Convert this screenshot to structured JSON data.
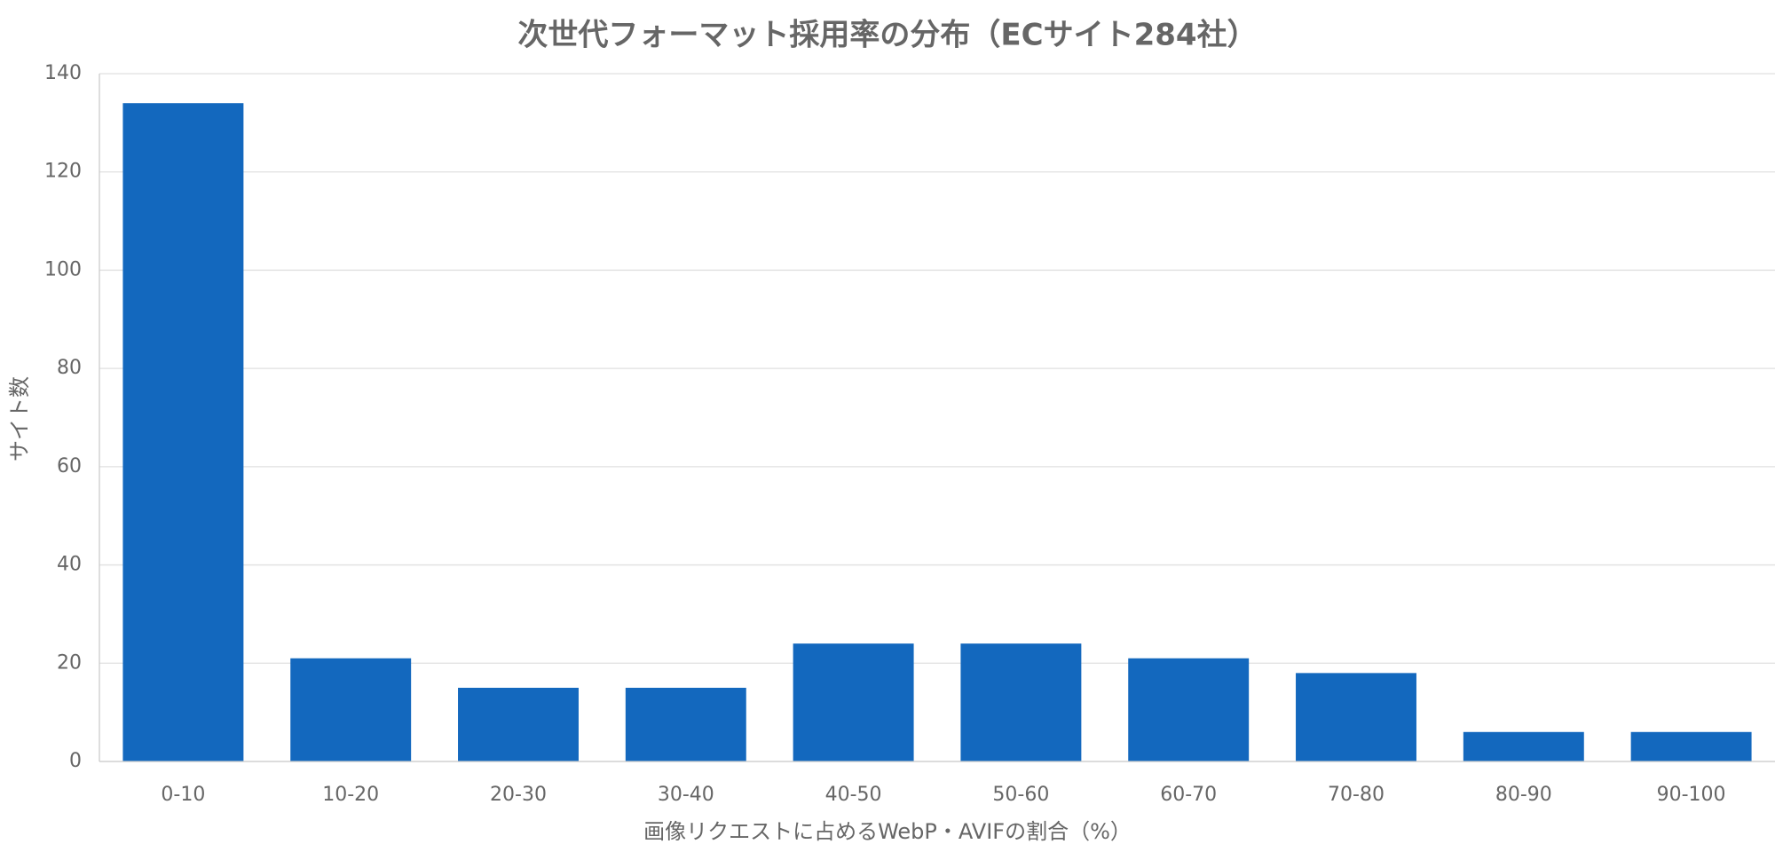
{
  "chart_data": {
    "type": "bar",
    "title": "次世代フォーマット採用率の分布（ECサイト284社）",
    "x_label": "画像リクエストに占めるWebP・AVIFの割合（%）",
    "y_label": "サイト数",
    "categories": [
      "0-10",
      "10-20",
      "20-30",
      "30-40",
      "40-50",
      "50-60",
      "60-70",
      "70-80",
      "80-90",
      "90-100"
    ],
    "values": [
      134,
      21,
      15,
      15,
      24,
      24,
      21,
      18,
      6,
      6
    ],
    "color": "#1368be",
    "ylim": [
      0,
      140
    ],
    "yticks": [
      0,
      20,
      40,
      60,
      80,
      100,
      120,
      140
    ],
    "grid": true
  }
}
